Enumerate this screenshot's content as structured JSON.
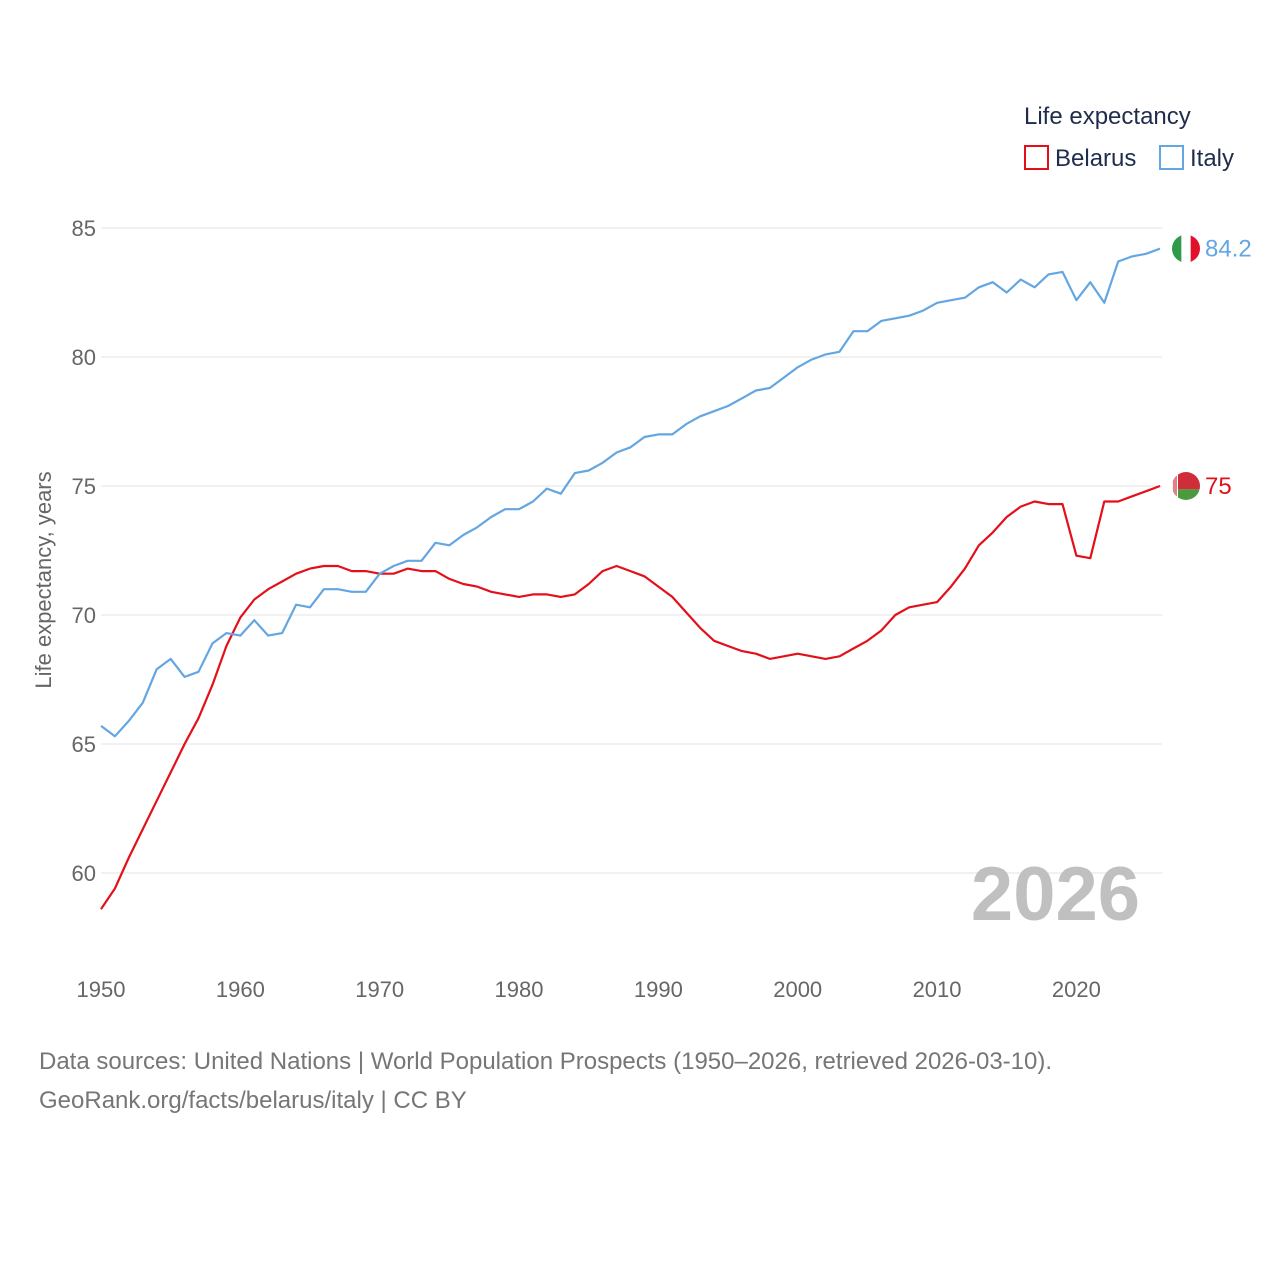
{
  "chart_data": {
    "type": "line",
    "ylabel": "Life expectancy, years",
    "legend_title": "Life expectancy",
    "legend_position": "top-right",
    "year_watermark": "2026",
    "xlim": [
      1950,
      2026
    ],
    "ylim": [
      57.5,
      85.5
    ],
    "x_ticks": [
      1950,
      1960,
      1970,
      1980,
      1990,
      2000,
      2010,
      2020
    ],
    "y_ticks": [
      60,
      65,
      70,
      75,
      80,
      85
    ],
    "x": [
      1950,
      1951,
      1952,
      1953,
      1954,
      1955,
      1956,
      1957,
      1958,
      1959,
      1960,
      1961,
      1962,
      1963,
      1964,
      1965,
      1966,
      1967,
      1968,
      1969,
      1970,
      1971,
      1972,
      1973,
      1974,
      1975,
      1976,
      1977,
      1978,
      1979,
      1980,
      1981,
      1982,
      1983,
      1984,
      1985,
      1986,
      1987,
      1988,
      1989,
      1990,
      1991,
      1992,
      1993,
      1994,
      1995,
      1996,
      1997,
      1998,
      1999,
      2000,
      2001,
      2002,
      2003,
      2004,
      2005,
      2006,
      2007,
      2008,
      2009,
      2010,
      2011,
      2012,
      2013,
      2014,
      2015,
      2016,
      2017,
      2018,
      2019,
      2020,
      2021,
      2022,
      2023,
      2024,
      2025,
      2026
    ],
    "series": [
      {
        "name": "Belarus",
        "color": "#e3101a",
        "end_label": "75",
        "values": [
          58.6,
          59.4,
          60.6,
          61.7,
          62.8,
          63.9,
          65.0,
          66.0,
          67.3,
          68.8,
          69.9,
          70.6,
          71.0,
          71.3,
          71.6,
          71.8,
          71.9,
          71.9,
          71.7,
          71.7,
          71.6,
          71.6,
          71.8,
          71.7,
          71.7,
          71.4,
          71.2,
          71.1,
          70.9,
          70.8,
          70.7,
          70.8,
          70.8,
          70.7,
          70.8,
          71.2,
          71.7,
          71.9,
          71.7,
          71.5,
          71.1,
          70.7,
          70.1,
          69.5,
          69.0,
          68.8,
          68.6,
          68.5,
          68.3,
          68.4,
          68.5,
          68.4,
          68.3,
          68.4,
          68.7,
          69.0,
          69.4,
          70.0,
          70.3,
          70.4,
          70.5,
          71.1,
          71.8,
          72.7,
          73.2,
          73.8,
          74.2,
          74.4,
          74.3,
          74.3,
          72.3,
          72.2,
          74.4,
          74.4,
          74.6,
          74.8,
          75.0
        ]
      },
      {
        "name": "Italy",
        "color": "#63a6e2",
        "end_label": "84.2",
        "values": [
          65.7,
          65.3,
          65.9,
          66.6,
          67.9,
          68.3,
          67.6,
          67.8,
          68.9,
          69.3,
          69.2,
          69.8,
          69.2,
          69.3,
          70.4,
          70.3,
          71.0,
          71.0,
          70.9,
          70.9,
          71.6,
          71.9,
          72.1,
          72.1,
          72.8,
          72.7,
          73.1,
          73.4,
          73.8,
          74.1,
          74.1,
          74.4,
          74.9,
          74.7,
          75.5,
          75.6,
          75.9,
          76.3,
          76.5,
          76.9,
          77.0,
          77.0,
          77.4,
          77.7,
          77.9,
          78.1,
          78.4,
          78.7,
          78.8,
          79.2,
          79.6,
          79.9,
          80.1,
          80.2,
          81.0,
          81.0,
          81.4,
          81.5,
          81.6,
          81.8,
          82.1,
          82.2,
          82.3,
          82.7,
          82.9,
          82.5,
          83.0,
          82.7,
          83.2,
          83.3,
          82.2,
          82.9,
          82.1,
          83.7,
          83.9,
          84.0,
          84.2
        ]
      }
    ]
  },
  "source": {
    "line1": "Data sources: United Nations | World Population Prospects (1950–2026, retrieved 2026-03-10).",
    "line2": "GeoRank.org/facts/belarus/italy | CC BY"
  },
  "flags": {
    "italy": "italy-flag-icon",
    "belarus": "belarus-flag-icon"
  }
}
